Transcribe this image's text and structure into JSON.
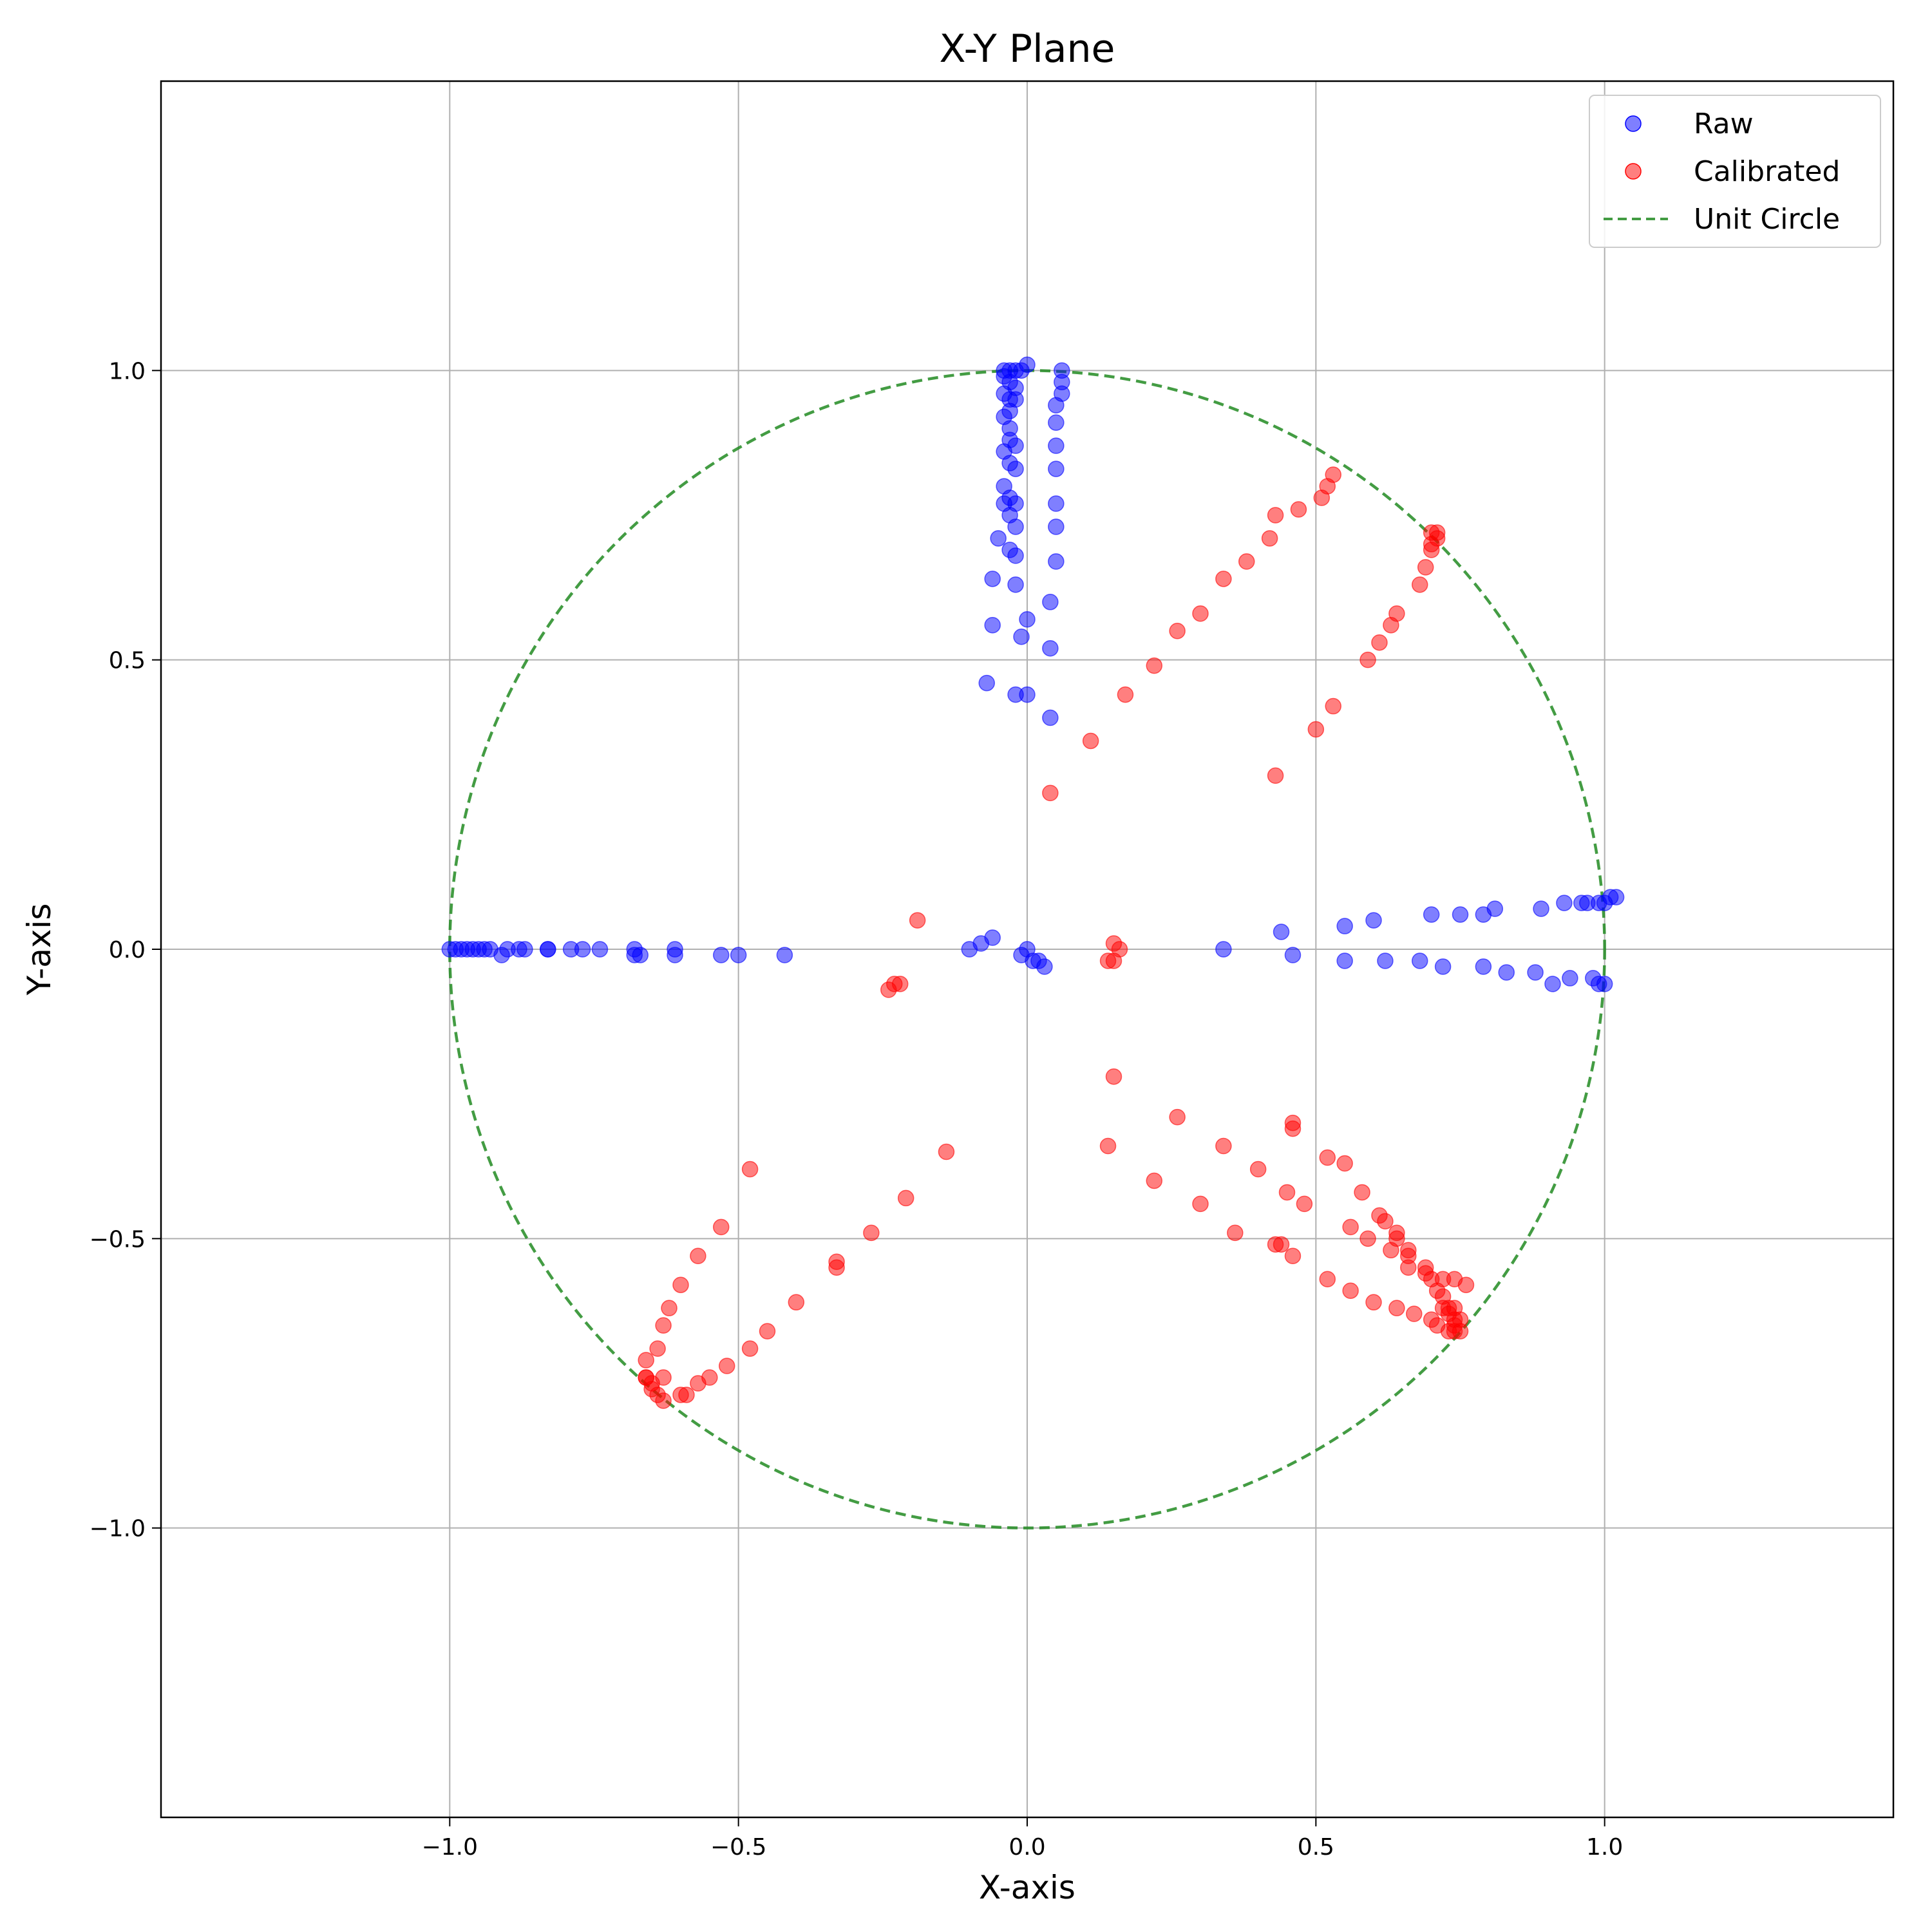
{
  "chart_data": {
    "type": "scatter",
    "title": "X-Y Plane",
    "xlabel": "X-axis",
    "ylabel": "Y-axis",
    "xlim": [
      -1.5,
      1.5
    ],
    "ylim": [
      -1.5,
      1.5
    ],
    "xticks": [
      -1.0,
      -0.5,
      0.0,
      0.5,
      1.0
    ],
    "yticks": [
      -1.0,
      -0.5,
      0.0,
      0.5,
      1.0
    ],
    "xtick_labels": [
      "−1.0",
      "−0.5",
      "0.0",
      "0.5",
      "1.0"
    ],
    "ytick_labels": [
      "−1.0",
      "−0.5",
      "0.0",
      "0.5",
      "1.0"
    ],
    "grid": true,
    "legend_position": "top-right",
    "series": [
      {
        "name": "Raw",
        "kind": "scatter",
        "color": "#0000ff",
        "opacity": 0.5,
        "points": [
          [
            -0.04,
            1.0
          ],
          [
            -0.03,
            1.0
          ],
          [
            -0.02,
            1.0
          ],
          [
            -0.01,
            1.0
          ],
          [
            0.0,
            1.01
          ],
          [
            -0.04,
            0.99
          ],
          [
            -0.03,
            0.98
          ],
          [
            -0.02,
            0.97
          ],
          [
            -0.03,
            0.95
          ],
          [
            -0.04,
            0.96
          ],
          [
            -0.02,
            0.95
          ],
          [
            -0.03,
            0.93
          ],
          [
            -0.04,
            0.92
          ],
          [
            -0.03,
            0.9
          ],
          [
            -0.03,
            0.88
          ],
          [
            -0.04,
            0.86
          ],
          [
            -0.02,
            0.87
          ],
          [
            -0.03,
            0.84
          ],
          [
            -0.02,
            0.83
          ],
          [
            -0.04,
            0.8
          ],
          [
            -0.04,
            0.77
          ],
          [
            -0.03,
            0.78
          ],
          [
            -0.02,
            0.77
          ],
          [
            -0.03,
            0.75
          ],
          [
            -0.02,
            0.73
          ],
          [
            -0.05,
            0.71
          ],
          [
            -0.03,
            0.69
          ],
          [
            -0.02,
            0.68
          ],
          [
            -0.06,
            0.64
          ],
          [
            -0.02,
            0.63
          ],
          [
            -0.06,
            0.56
          ],
          [
            -0.01,
            0.54
          ],
          [
            0.0,
            0.57
          ],
          [
            -0.07,
            0.46
          ],
          [
            -0.02,
            0.44
          ],
          [
            0.0,
            0.44
          ],
          [
            0.04,
            0.4
          ],
          [
            0.06,
            1.0
          ],
          [
            0.06,
            0.98
          ],
          [
            0.06,
            0.96
          ],
          [
            0.05,
            0.94
          ],
          [
            0.05,
            0.91
          ],
          [
            0.05,
            0.87
          ],
          [
            0.05,
            0.83
          ],
          [
            0.05,
            0.77
          ],
          [
            0.05,
            0.73
          ],
          [
            0.05,
            0.67
          ],
          [
            0.04,
            0.6
          ],
          [
            0.04,
            0.52
          ],
          [
            -1.0,
            0.0
          ],
          [
            -0.99,
            0.0
          ],
          [
            -0.98,
            0.0
          ],
          [
            -0.97,
            0.0
          ],
          [
            -0.96,
            0.0
          ],
          [
            -0.95,
            0.0
          ],
          [
            -0.94,
            0.0
          ],
          [
            -0.93,
            0.0
          ],
          [
            -0.91,
            -0.01
          ],
          [
            -0.9,
            0.0
          ],
          [
            -0.88,
            0.0
          ],
          [
            -0.87,
            0.0
          ],
          [
            -0.83,
            0.0
          ],
          [
            -0.83,
            0.0
          ],
          [
            -0.79,
            0.0
          ],
          [
            -0.77,
            0.0
          ],
          [
            -0.74,
            0.0
          ],
          [
            -0.68,
            0.0
          ],
          [
            -0.68,
            -0.01
          ],
          [
            -0.67,
            -0.01
          ],
          [
            -0.61,
            0.0
          ],
          [
            -0.61,
            -0.01
          ],
          [
            -0.53,
            -0.01
          ],
          [
            -0.5,
            -0.01
          ],
          [
            -0.42,
            -0.01
          ],
          [
            -0.1,
            0.0
          ],
          [
            -0.08,
            0.01
          ],
          [
            -0.06,
            0.02
          ],
          [
            0.0,
            0.0
          ],
          [
            -0.01,
            -0.01
          ],
          [
            0.01,
            -0.02
          ],
          [
            0.02,
            -0.02
          ],
          [
            0.03,
            -0.03
          ],
          [
            0.34,
            0.0
          ],
          [
            0.44,
            0.03
          ],
          [
            0.46,
            -0.01
          ],
          [
            0.55,
            0.04
          ],
          [
            0.55,
            -0.02
          ],
          [
            0.6,
            0.05
          ],
          [
            0.62,
            -0.02
          ],
          [
            0.68,
            -0.02
          ],
          [
            0.7,
            0.06
          ],
          [
            0.72,
            -0.03
          ],
          [
            0.75,
            0.06
          ],
          [
            0.79,
            -0.03
          ],
          [
            0.79,
            0.06
          ],
          [
            0.81,
            0.07
          ],
          [
            0.83,
            -0.04
          ],
          [
            0.88,
            -0.04
          ],
          [
            0.89,
            0.07
          ],
          [
            0.91,
            -0.06
          ],
          [
            0.93,
            0.08
          ],
          [
            0.94,
            -0.05
          ],
          [
            0.96,
            0.08
          ],
          [
            0.97,
            0.08
          ],
          [
            0.98,
            -0.05
          ],
          [
            0.99,
            0.08
          ],
          [
            0.99,
            -0.06
          ],
          [
            1.0,
            0.08
          ],
          [
            1.0,
            -0.06
          ],
          [
            1.01,
            0.09
          ],
          [
            1.02,
            0.09
          ]
        ]
      },
      {
        "name": "Calibrated",
        "kind": "scatter",
        "color": "#ff0000",
        "opacity": 0.5,
        "points": [
          [
            0.04,
            0.27
          ],
          [
            0.11,
            0.36
          ],
          [
            0.17,
            0.44
          ],
          [
            0.22,
            0.49
          ],
          [
            0.26,
            0.55
          ],
          [
            0.3,
            0.58
          ],
          [
            0.34,
            0.64
          ],
          [
            0.38,
            0.67
          ],
          [
            0.42,
            0.71
          ],
          [
            0.43,
            0.75
          ],
          [
            0.47,
            0.76
          ],
          [
            0.51,
            0.78
          ],
          [
            0.52,
            0.8
          ],
          [
            0.53,
            0.82
          ],
          [
            0.43,
            0.3
          ],
          [
            0.5,
            0.38
          ],
          [
            0.53,
            0.42
          ],
          [
            0.59,
            0.5
          ],
          [
            0.61,
            0.53
          ],
          [
            0.63,
            0.56
          ],
          [
            0.64,
            0.58
          ],
          [
            0.68,
            0.63
          ],
          [
            0.69,
            0.66
          ],
          [
            0.7,
            0.69
          ],
          [
            0.7,
            0.7
          ],
          [
            0.71,
            0.71
          ],
          [
            0.7,
            0.72
          ],
          [
            0.71,
            0.72
          ],
          [
            0.14,
            -0.02
          ],
          [
            0.15,
            0.01
          ],
          [
            0.15,
            -0.02
          ],
          [
            0.16,
            0.0
          ],
          [
            -0.19,
            0.05
          ],
          [
            -0.22,
            -0.06
          ],
          [
            -0.23,
            -0.06
          ],
          [
            -0.24,
            -0.07
          ],
          [
            0.15,
            -0.22
          ],
          [
            0.14,
            -0.34
          ],
          [
            0.22,
            -0.4
          ],
          [
            0.26,
            -0.29
          ],
          [
            0.3,
            -0.44
          ],
          [
            0.34,
            -0.34
          ],
          [
            0.36,
            -0.49
          ],
          [
            0.4,
            -0.38
          ],
          [
            0.43,
            -0.51
          ],
          [
            0.44,
            -0.51
          ],
          [
            0.45,
            -0.42
          ],
          [
            0.46,
            -0.31
          ],
          [
            0.46,
            -0.3
          ],
          [
            0.46,
            -0.53
          ],
          [
            0.48,
            -0.44
          ],
          [
            0.52,
            -0.36
          ],
          [
            0.52,
            -0.57
          ],
          [
            0.55,
            -0.37
          ],
          [
            0.56,
            -0.48
          ],
          [
            0.56,
            -0.59
          ],
          [
            0.58,
            -0.42
          ],
          [
            0.59,
            -0.5
          ],
          [
            0.6,
            -0.61
          ],
          [
            0.61,
            -0.46
          ],
          [
            0.62,
            -0.47
          ],
          [
            0.63,
            -0.52
          ],
          [
            0.64,
            -0.49
          ],
          [
            0.64,
            -0.5
          ],
          [
            0.64,
            -0.62
          ],
          [
            0.66,
            -0.52
          ],
          [
            0.66,
            -0.53
          ],
          [
            0.66,
            -0.55
          ],
          [
            0.67,
            -0.63
          ],
          [
            0.69,
            -0.55
          ],
          [
            0.69,
            -0.56
          ],
          [
            0.7,
            -0.57
          ],
          [
            0.7,
            -0.64
          ],
          [
            0.71,
            -0.59
          ],
          [
            0.71,
            -0.65
          ],
          [
            0.72,
            -0.57
          ],
          [
            0.72,
            -0.6
          ],
          [
            0.72,
            -0.62
          ],
          [
            0.73,
            -0.62
          ],
          [
            0.73,
            -0.63
          ],
          [
            0.73,
            -0.66
          ],
          [
            0.74,
            -0.57
          ],
          [
            0.74,
            -0.62
          ],
          [
            0.74,
            -0.64
          ],
          [
            0.74,
            -0.65
          ],
          [
            0.74,
            -0.66
          ],
          [
            0.75,
            -0.64
          ],
          [
            0.75,
            -0.66
          ],
          [
            0.76,
            -0.58
          ],
          [
            -0.14,
            -0.35
          ],
          [
            -0.21,
            -0.43
          ],
          [
            -0.27,
            -0.49
          ],
          [
            -0.33,
            -0.54
          ],
          [
            -0.33,
            -0.55
          ],
          [
            -0.4,
            -0.61
          ],
          [
            -0.45,
            -0.66
          ],
          [
            -0.48,
            -0.69
          ],
          [
            -0.52,
            -0.72
          ],
          [
            -0.55,
            -0.74
          ],
          [
            -0.57,
            -0.75
          ],
          [
            -0.59,
            -0.77
          ],
          [
            -0.6,
            -0.77
          ],
          [
            -0.63,
            -0.78
          ],
          [
            -0.64,
            -0.77
          ],
          [
            -0.65,
            -0.76
          ],
          [
            -0.65,
            -0.75
          ],
          [
            -0.66,
            -0.74
          ],
          [
            -0.48,
            -0.38
          ],
          [
            -0.53,
            -0.48
          ],
          [
            -0.57,
            -0.53
          ],
          [
            -0.6,
            -0.58
          ],
          [
            -0.62,
            -0.62
          ],
          [
            -0.63,
            -0.65
          ],
          [
            -0.64,
            -0.69
          ],
          [
            -0.66,
            -0.71
          ],
          [
            -0.66,
            -0.74
          ],
          [
            -0.63,
            -0.74
          ]
        ]
      },
      {
        "name": "Unit Circle",
        "kind": "line",
        "color": "#228b22",
        "linestyle": "dashed",
        "radius": 1.0
      }
    ]
  }
}
